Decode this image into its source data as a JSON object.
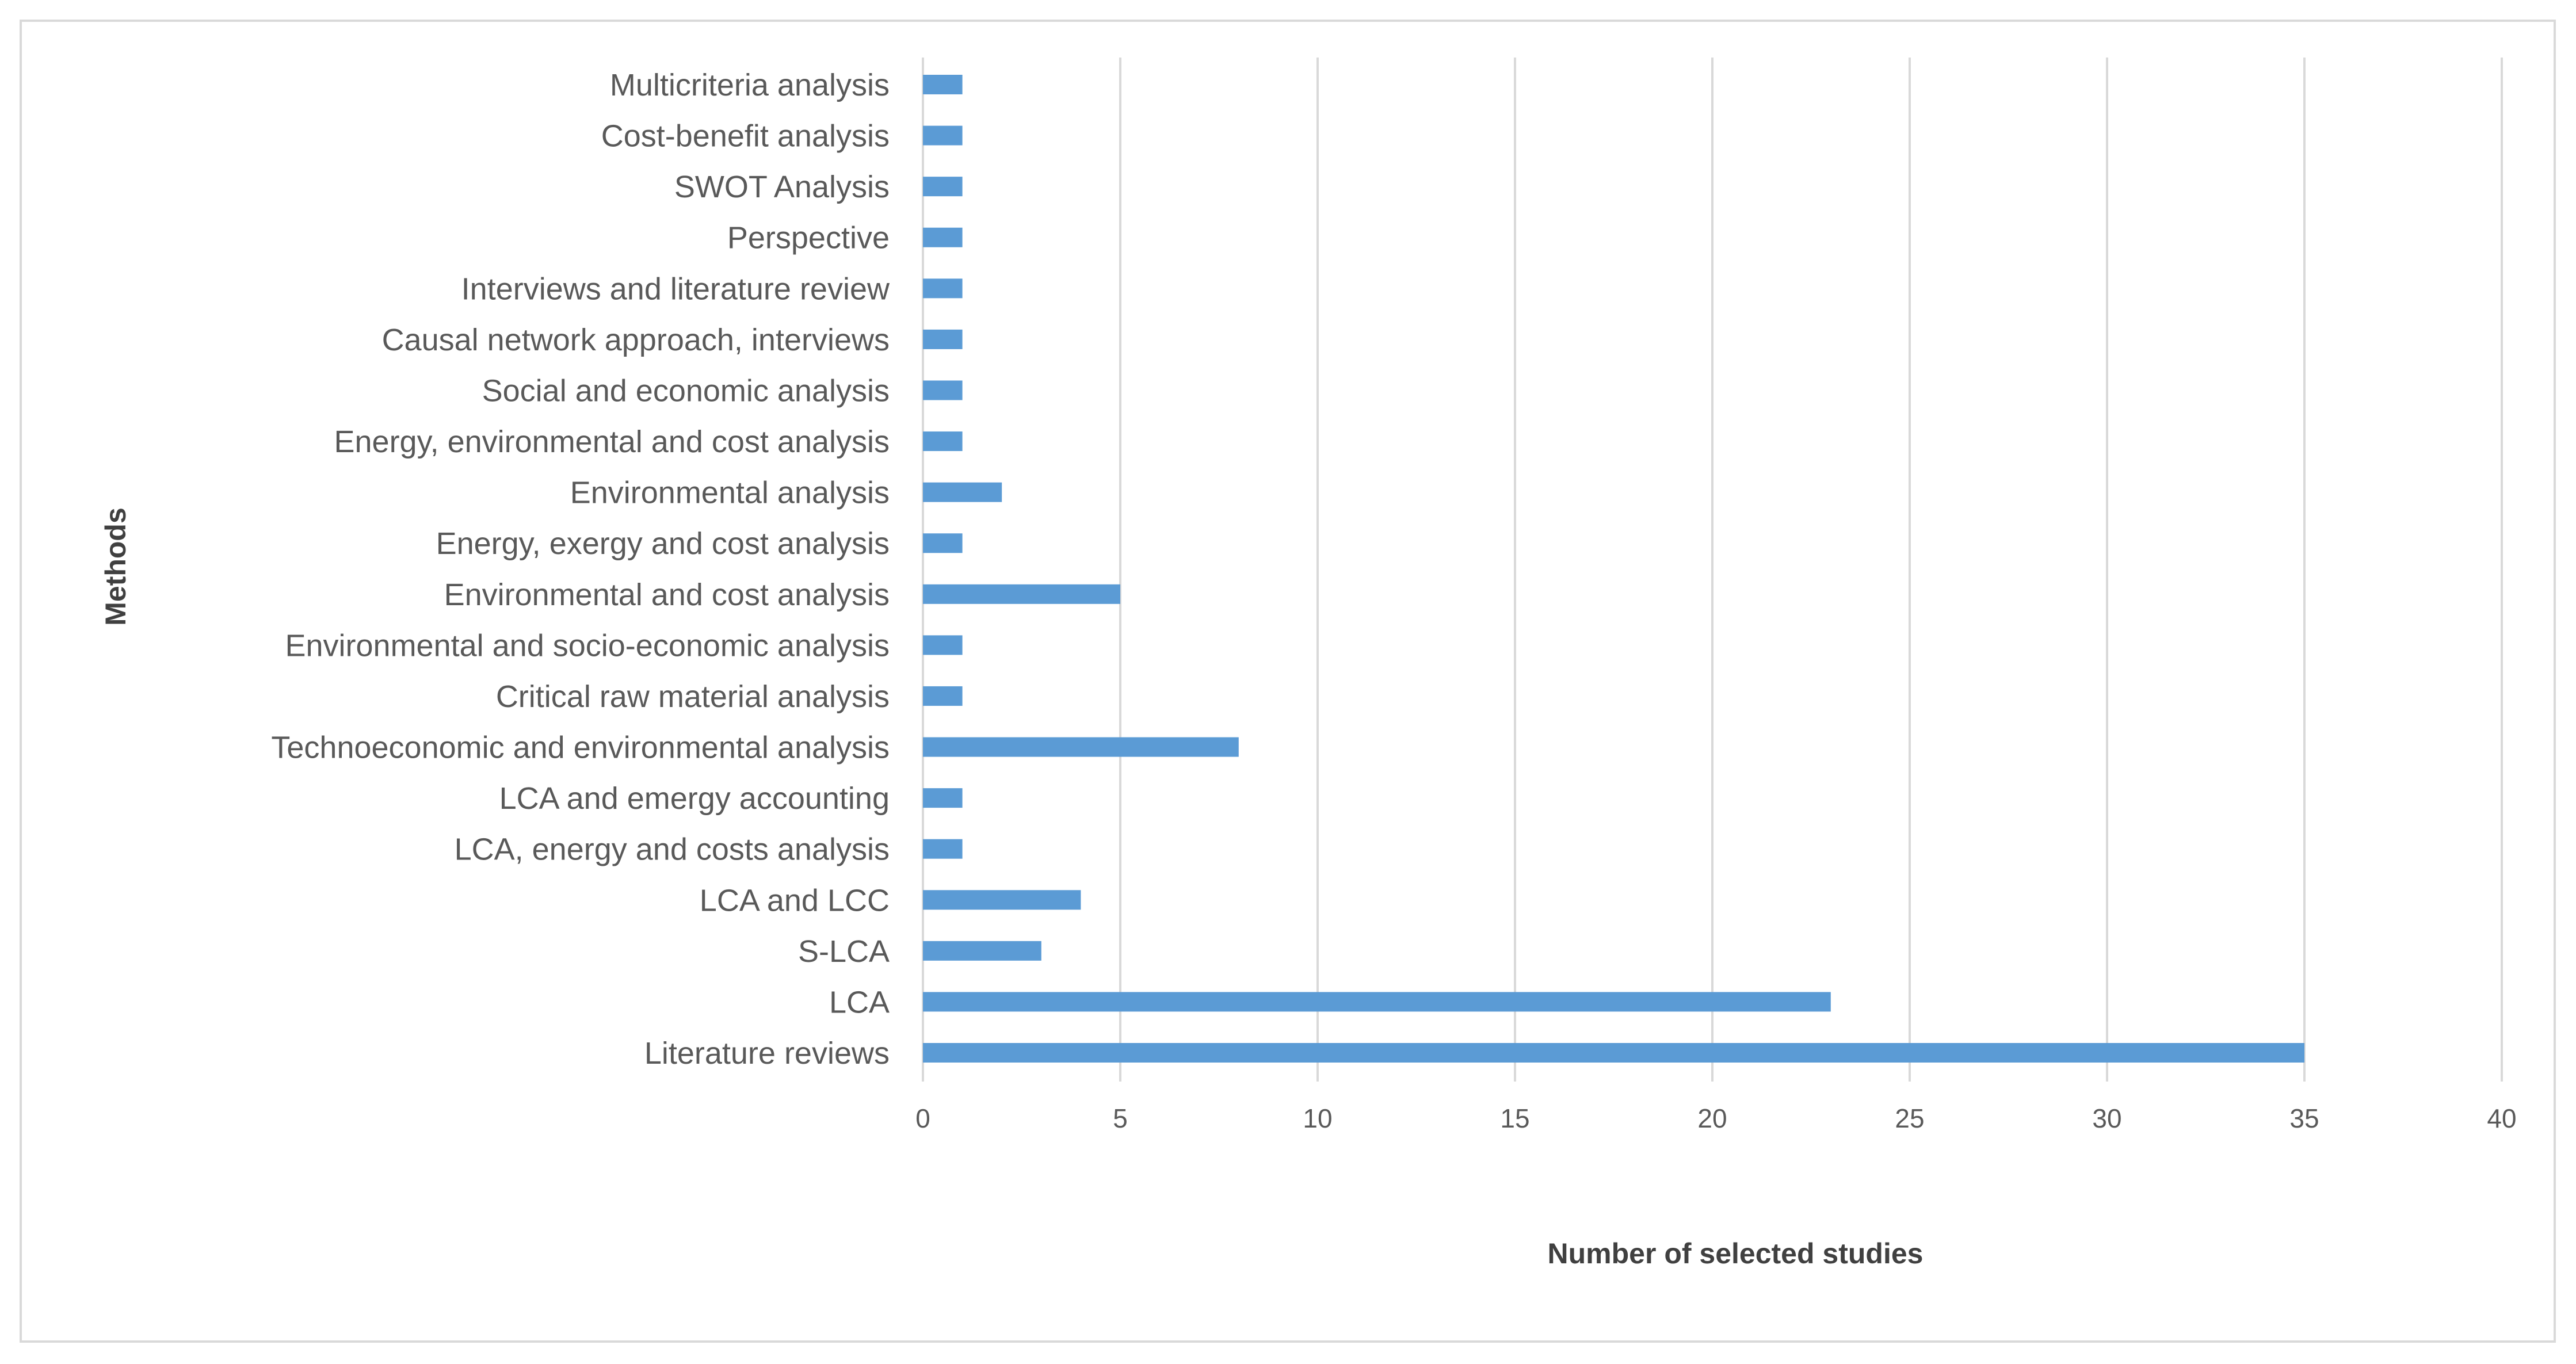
{
  "chart_data": {
    "type": "bar",
    "orientation": "horizontal",
    "title": "",
    "xlabel": "Number of selected studies",
    "ylabel": "Methods",
    "xlim": [
      0,
      40
    ],
    "x_ticks": [
      0,
      5,
      10,
      15,
      20,
      25,
      30,
      35,
      40
    ],
    "grid": true,
    "legend": "none",
    "bar_color": "#5b9bd5",
    "categories": [
      "Multicriteria analysis",
      "Cost-benefit analysis",
      "SWOT Analysis",
      "Perspective",
      "Interviews and literature review",
      "Causal network approach, interviews",
      "Social and economic analysis",
      "Energy, environmental and cost analysis",
      "Environmental analysis",
      "Energy, exergy and cost analysis",
      "Environmental and cost analysis",
      "Environmental and socio-economic analysis",
      "Critical raw material analysis",
      "Technoeconomic and environmental analysis",
      "LCA and emergy accounting",
      "LCA, energy and costs analysis",
      "LCA and LCC",
      "S-LCA",
      "LCA",
      "Literature reviews"
    ],
    "values": [
      1,
      1,
      1,
      1,
      1,
      1,
      1,
      1,
      2,
      1,
      5,
      1,
      1,
      8,
      1,
      1,
      4,
      3,
      23,
      35
    ]
  }
}
